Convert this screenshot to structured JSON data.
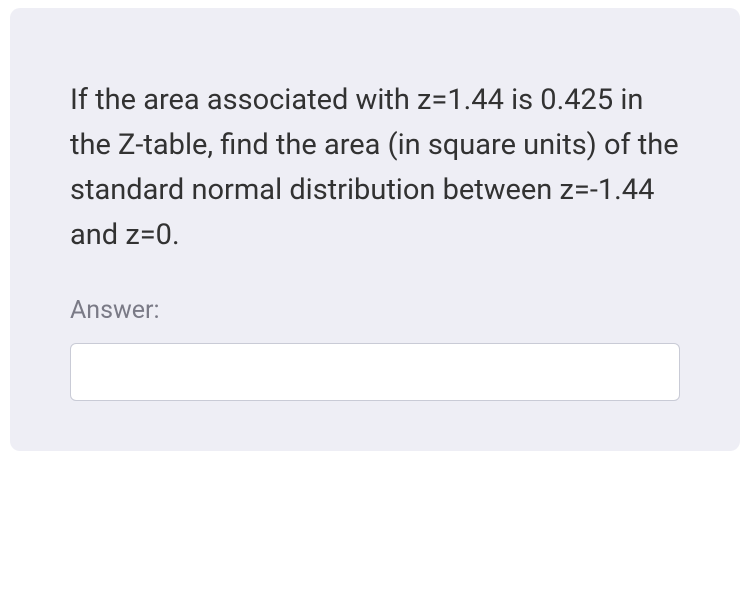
{
  "card": {
    "background_color": "#eeeef5",
    "border_radius": 10
  },
  "question": {
    "text": "If the area associated with z=1.44 is 0.425 in the Z-table, find the area (in square units) of the standard normal distribution between z=-1.44 and z=0.",
    "font_size": 29,
    "line_height": 1.55,
    "color": "#323232"
  },
  "answer": {
    "label": "Answer:",
    "label_color": "#7a7a86",
    "label_font_size": 25,
    "input_value": "",
    "input_placeholder": "",
    "input_background": "#ffffff",
    "input_border_color": "#c9cbd6",
    "input_border_radius": 6
  }
}
